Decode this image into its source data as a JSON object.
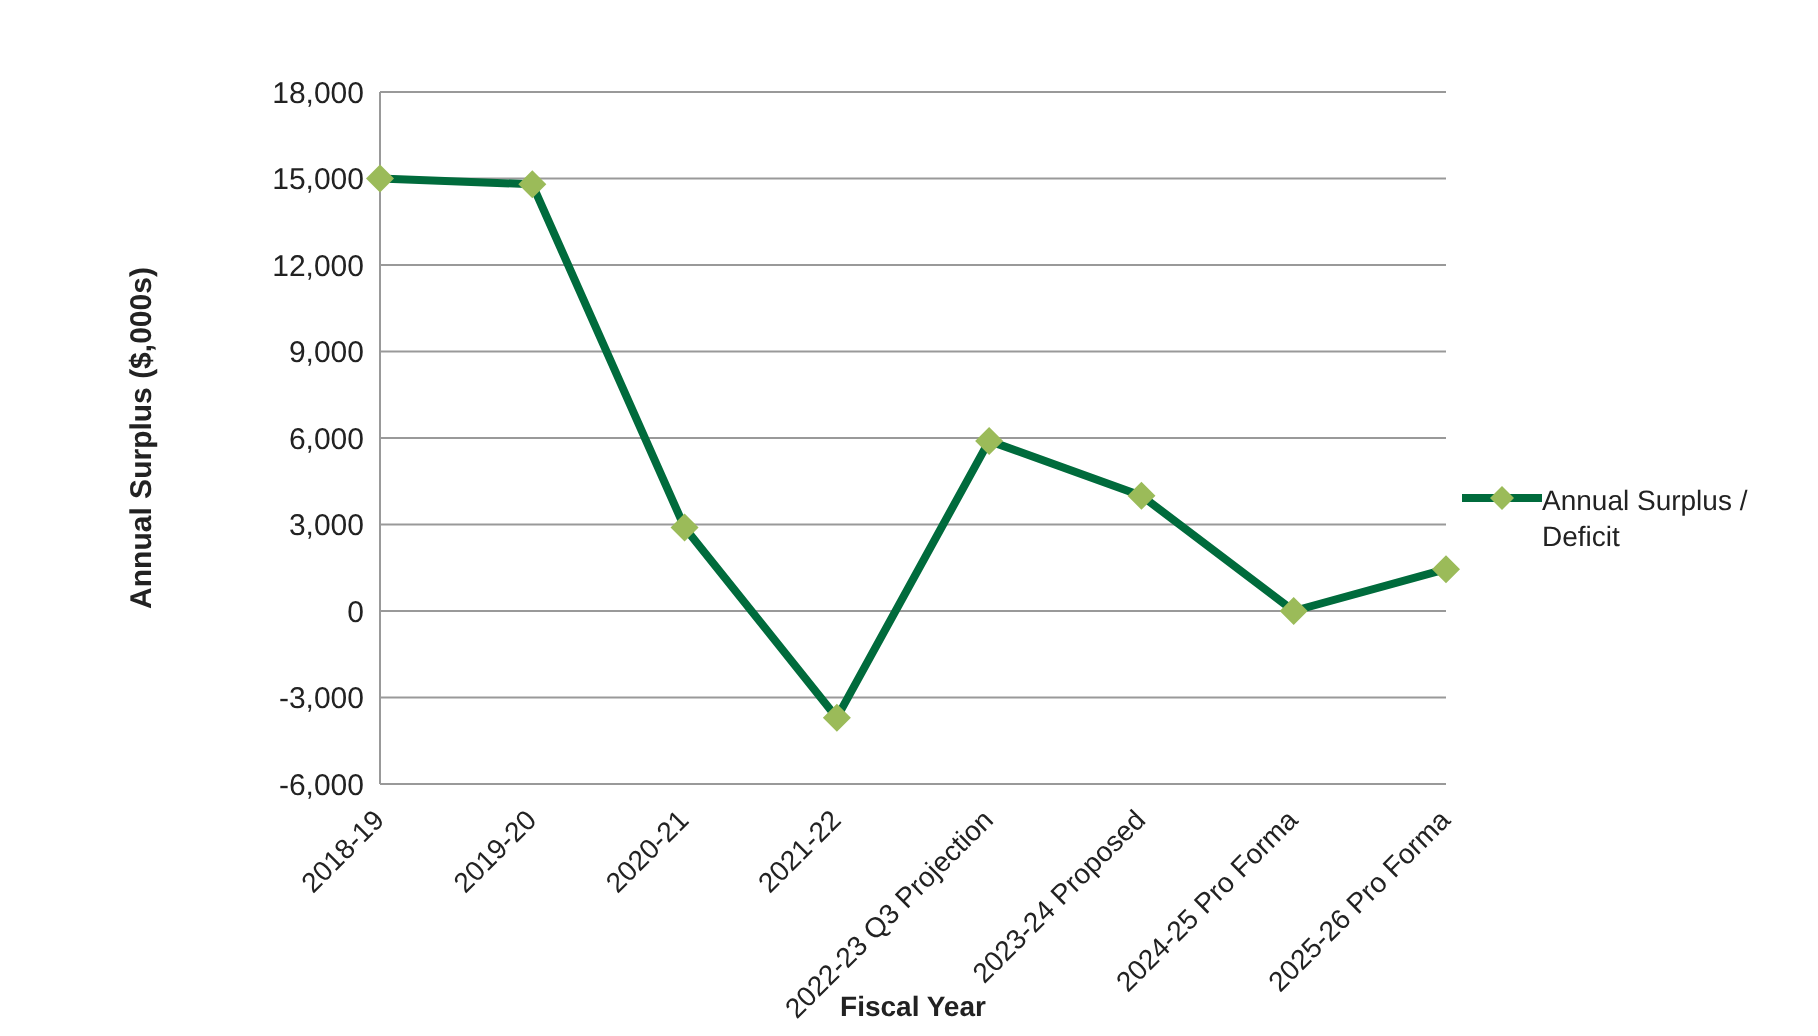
{
  "chart_data": {
    "type": "line",
    "xlabel": "Fiscal Year",
    "ylabel": "Annual Surplus ($,000s)",
    "categories": [
      "2018-19",
      "2019-20",
      "2020-21",
      "2021-22",
      "2022-23 Q3 Projection",
      "2023-24 Proposed",
      "2024-25 Pro Forma",
      "2025-26 Pro Forma"
    ],
    "series": [
      {
        "name": "Annual Surplus / Deficit",
        "color": "#006b3c",
        "values": [
          15000,
          14800,
          2900,
          -3700,
          5900,
          4000,
          0,
          1450
        ]
      }
    ],
    "ylim": [
      -6000,
      18000
    ],
    "yticks": [
      {
        "value": -6000,
        "label": "-6,000"
      },
      {
        "value": -3000,
        "label": "-3,000"
      },
      0,
      {
        "value": 3000,
        "label": "3,000"
      },
      {
        "value": 6000,
        "label": "6,000"
      },
      {
        "value": 9000,
        "label": "9,000"
      },
      {
        "value": 12000,
        "label": "12,000"
      },
      {
        "value": 15000,
        "label": "15,000"
      },
      {
        "value": 18000,
        "label": "18,000"
      }
    ],
    "grid": "y",
    "legend": "right",
    "marker": "diamond",
    "line_style": "solid"
  }
}
